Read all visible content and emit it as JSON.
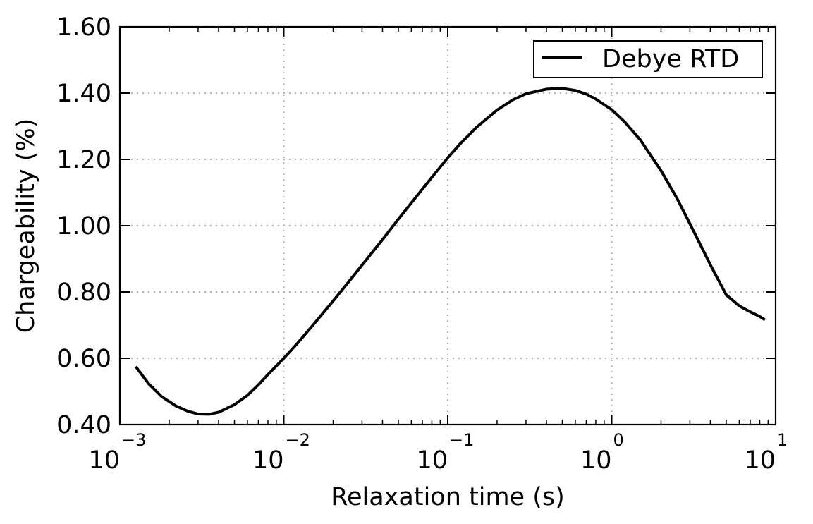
{
  "chart_data": {
    "type": "line",
    "xscale": "log",
    "xlim": [
      0.001,
      10
    ],
    "ylim": [
      0.4,
      1.6
    ],
    "xlabel": "Relaxation time (s)",
    "ylabel": "Chargeability (%)",
    "x_ticks": [
      {
        "base": "10",
        "exp": "−3"
      },
      {
        "base": "10",
        "exp": "−2"
      },
      {
        "base": "10",
        "exp": "−1"
      },
      {
        "base": "10",
        "exp": "0"
      },
      {
        "base": "10",
        "exp": "1"
      }
    ],
    "y_ticks": [
      "0.40",
      "0.60",
      "0.80",
      "1.00",
      "1.20",
      "1.40",
      "1.60"
    ],
    "grid": true,
    "legend_position": "top-right",
    "series": [
      {
        "name": "Debye RTD",
        "color": "#000000",
        "x": [
          0.00125,
          0.0015,
          0.0018,
          0.0022,
          0.0026,
          0.003,
          0.0035,
          0.004,
          0.005,
          0.006,
          0.007,
          0.008,
          0.01,
          0.012,
          0.015,
          0.02,
          0.025,
          0.03,
          0.04,
          0.05,
          0.06,
          0.08,
          0.1,
          0.12,
          0.15,
          0.2,
          0.25,
          0.3,
          0.4,
          0.5,
          0.6,
          0.7,
          0.8,
          1.0,
          1.2,
          1.5,
          2.0,
          2.5,
          3.0,
          4.0,
          5.0,
          6.0,
          7.0,
          8.0,
          8.6
        ],
        "y": [
          0.575,
          0.523,
          0.484,
          0.456,
          0.44,
          0.432,
          0.431,
          0.437,
          0.46,
          0.488,
          0.52,
          0.551,
          0.6,
          0.643,
          0.699,
          0.773,
          0.832,
          0.881,
          0.958,
          1.02,
          1.069,
          1.146,
          1.205,
          1.249,
          1.297,
          1.349,
          1.38,
          1.398,
          1.412,
          1.414,
          1.408,
          1.397,
          1.382,
          1.35,
          1.313,
          1.258,
          1.166,
          1.083,
          1.006,
          0.882,
          0.791,
          0.758,
          0.74,
          0.726,
          0.716
        ]
      }
    ]
  }
}
